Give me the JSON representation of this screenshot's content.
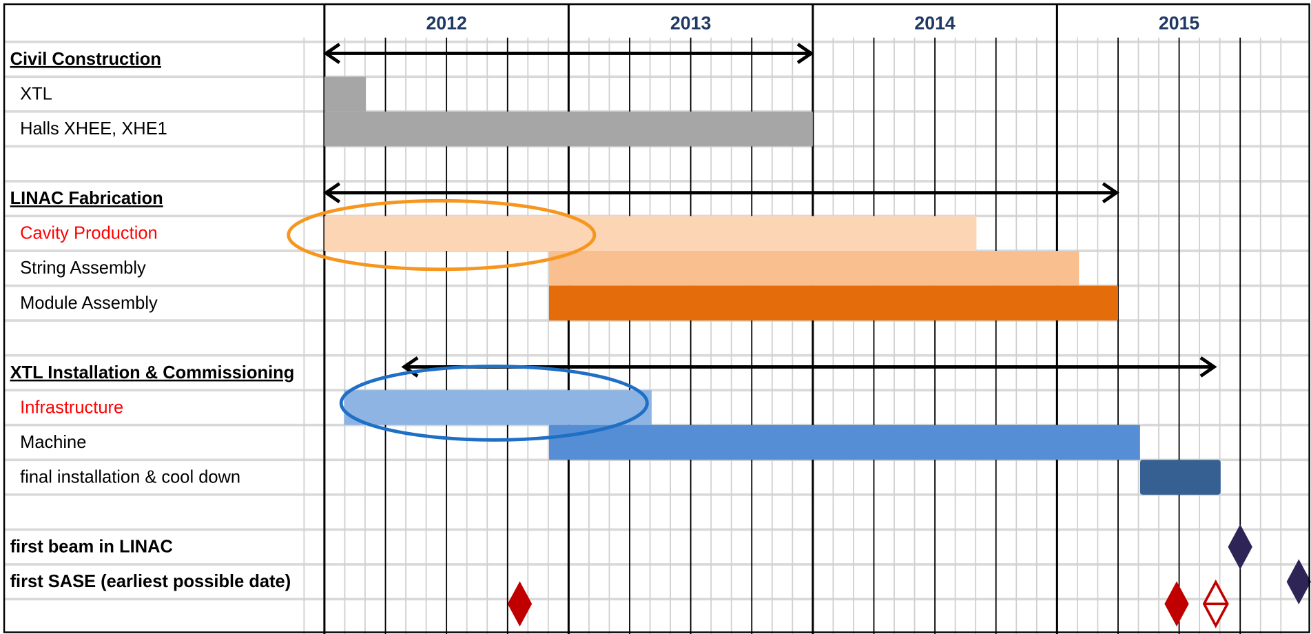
{
  "chart_data": {
    "type": "gantt",
    "xlim": [
      2012,
      2016.04
    ],
    "xticks": [
      2012,
      2013,
      2014,
      2015
    ],
    "categories": [
      "Civil Construction",
      "XTL",
      "Halls XHEE, XHE1",
      null,
      "LINAC Fabrication",
      "Cavity Production",
      "String Assembly",
      "Module Assembly",
      null,
      "XTL Installation & Commissioning",
      "Infrastructure",
      "Machine",
      "final installation & cool down",
      null,
      "first beam in LINAC",
      "first SASE (earliest possible date)",
      null
    ],
    "bold_rows": [
      0,
      4,
      9,
      14,
      15
    ],
    "underlined_rows": [
      0,
      4,
      9
    ],
    "highlight_rows": [
      5,
      10
    ],
    "highlight_color": "#ff0000",
    "tasks": [
      {
        "row": 1,
        "start": 2012,
        "end": 2012.17,
        "color": "#a6a6a6"
      },
      {
        "row": 2,
        "start": 2012,
        "end": 2014,
        "color": "#a6a6a6"
      },
      {
        "row": 5,
        "start": 2012,
        "end": 2014.67,
        "color": "#fcd5b5"
      },
      {
        "row": 6,
        "start": 2012.92,
        "end": 2015.09,
        "color": "#f9bf8f"
      },
      {
        "row": 7,
        "start": 2012.92,
        "end": 2015.25,
        "color": "#e46c0a"
      },
      {
        "row": 10,
        "start": 2012.08,
        "end": 2013.34,
        "color": "#8db4e2"
      },
      {
        "row": 11,
        "start": 2012.92,
        "end": 2015.34,
        "color": "#558ed5"
      },
      {
        "row": 12,
        "start": 2015.34,
        "end": 2015.67,
        "color": "#376092"
      }
    ],
    "spans": [
      {
        "row": 0,
        "start": 2012,
        "end": 2014
      },
      {
        "row": 4,
        "start": 2012,
        "end": 2015.25
      },
      {
        "row": 9,
        "start": 2012.32,
        "end": 2015.65
      }
    ],
    "milestones": [
      {
        "row": 14,
        "x": 2015.75,
        "color": "#2e2455",
        "filled": true
      },
      {
        "row": 15,
        "x": 2015.99,
        "color": "#2e2455",
        "filled": true
      },
      {
        "row": 16,
        "x": 2012.8,
        "color": "#c00000",
        "filled": true
      },
      {
        "row": 16,
        "x": 2015.49,
        "color": "#c00000",
        "filled": true
      },
      {
        "row": 16,
        "x": 2015.65,
        "color": "#c00000",
        "filled": false
      }
    ]
  }
}
